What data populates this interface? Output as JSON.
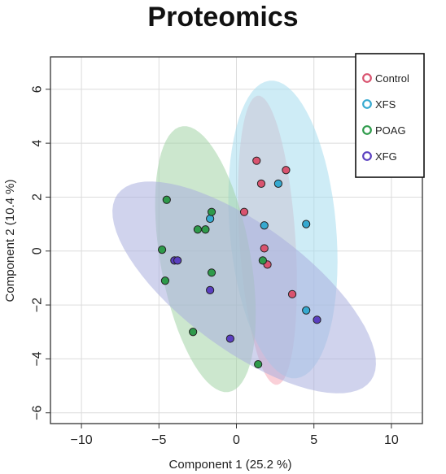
{
  "chart_data": {
    "type": "scatter",
    "title": "Proteomics",
    "xlabel": "Component 1 (25.2 %)",
    "ylabel": "Component 2 (10.4 %)",
    "xlim": [
      -12,
      12
    ],
    "ylim": [
      -6.4,
      7.2
    ],
    "xticks": [
      -10,
      -5,
      0,
      5,
      10
    ],
    "yticks": [
      -6,
      -4,
      -2,
      0,
      2,
      4,
      6
    ],
    "grid": true,
    "legend_position": "top-right",
    "series": [
      {
        "name": "Control",
        "color": "#d9536f",
        "fill": "#f6a9b8",
        "ellipse": {
          "cx": 2.0,
          "cy": 0.4,
          "rx": 5.4,
          "ry": 1.8,
          "angle_deg": -83
        },
        "points": [
          [
            1.3,
            3.35
          ],
          [
            1.6,
            2.5
          ],
          [
            3.2,
            3.0
          ],
          [
            0.5,
            1.45
          ],
          [
            1.8,
            0.1
          ],
          [
            2.0,
            -0.5
          ],
          [
            3.6,
            -1.6
          ]
        ]
      },
      {
        "name": "XFS",
        "color": "#36a9d0",
        "fill": "#a6dcef",
        "ellipse": {
          "cx": 3.0,
          "cy": 0.8,
          "rx": 5.6,
          "ry": 3.4,
          "angle_deg": -78
        },
        "points": [
          [
            2.7,
            2.5
          ],
          [
            1.8,
            0.95
          ],
          [
            4.5,
            1.0
          ],
          [
            -1.7,
            1.2
          ],
          [
            4.5,
            -2.2
          ]
        ]
      },
      {
        "name": "POAG",
        "color": "#2e9a4a",
        "fill": "#a3d3a5",
        "ellipse": {
          "cx": -2.0,
          "cy": -0.3,
          "rx": 5.2,
          "ry": 2.8,
          "angle_deg": -68
        },
        "points": [
          [
            -4.5,
            1.9
          ],
          [
            -1.6,
            1.45
          ],
          [
            -2.5,
            0.8
          ],
          [
            -2.0,
            0.8
          ],
          [
            -4.8,
            0.05
          ],
          [
            1.7,
            -0.35
          ],
          [
            -1.6,
            -0.8
          ],
          [
            -4.6,
            -1.1
          ],
          [
            -2.8,
            -3.0
          ],
          [
            1.4,
            -4.2
          ]
        ]
      },
      {
        "name": "XFG",
        "color": "#5a3fc0",
        "fill": "#a9aede",
        "ellipse": {
          "cx": 0.5,
          "cy": -1.35,
          "rx": 9.0,
          "ry": 2.6,
          "angle_deg": -20
        },
        "points": [
          [
            -4.0,
            -0.35
          ],
          [
            -3.8,
            -0.35
          ],
          [
            -1.7,
            -1.45
          ],
          [
            -0.4,
            -3.25
          ],
          [
            5.2,
            -2.55
          ]
        ]
      }
    ]
  }
}
